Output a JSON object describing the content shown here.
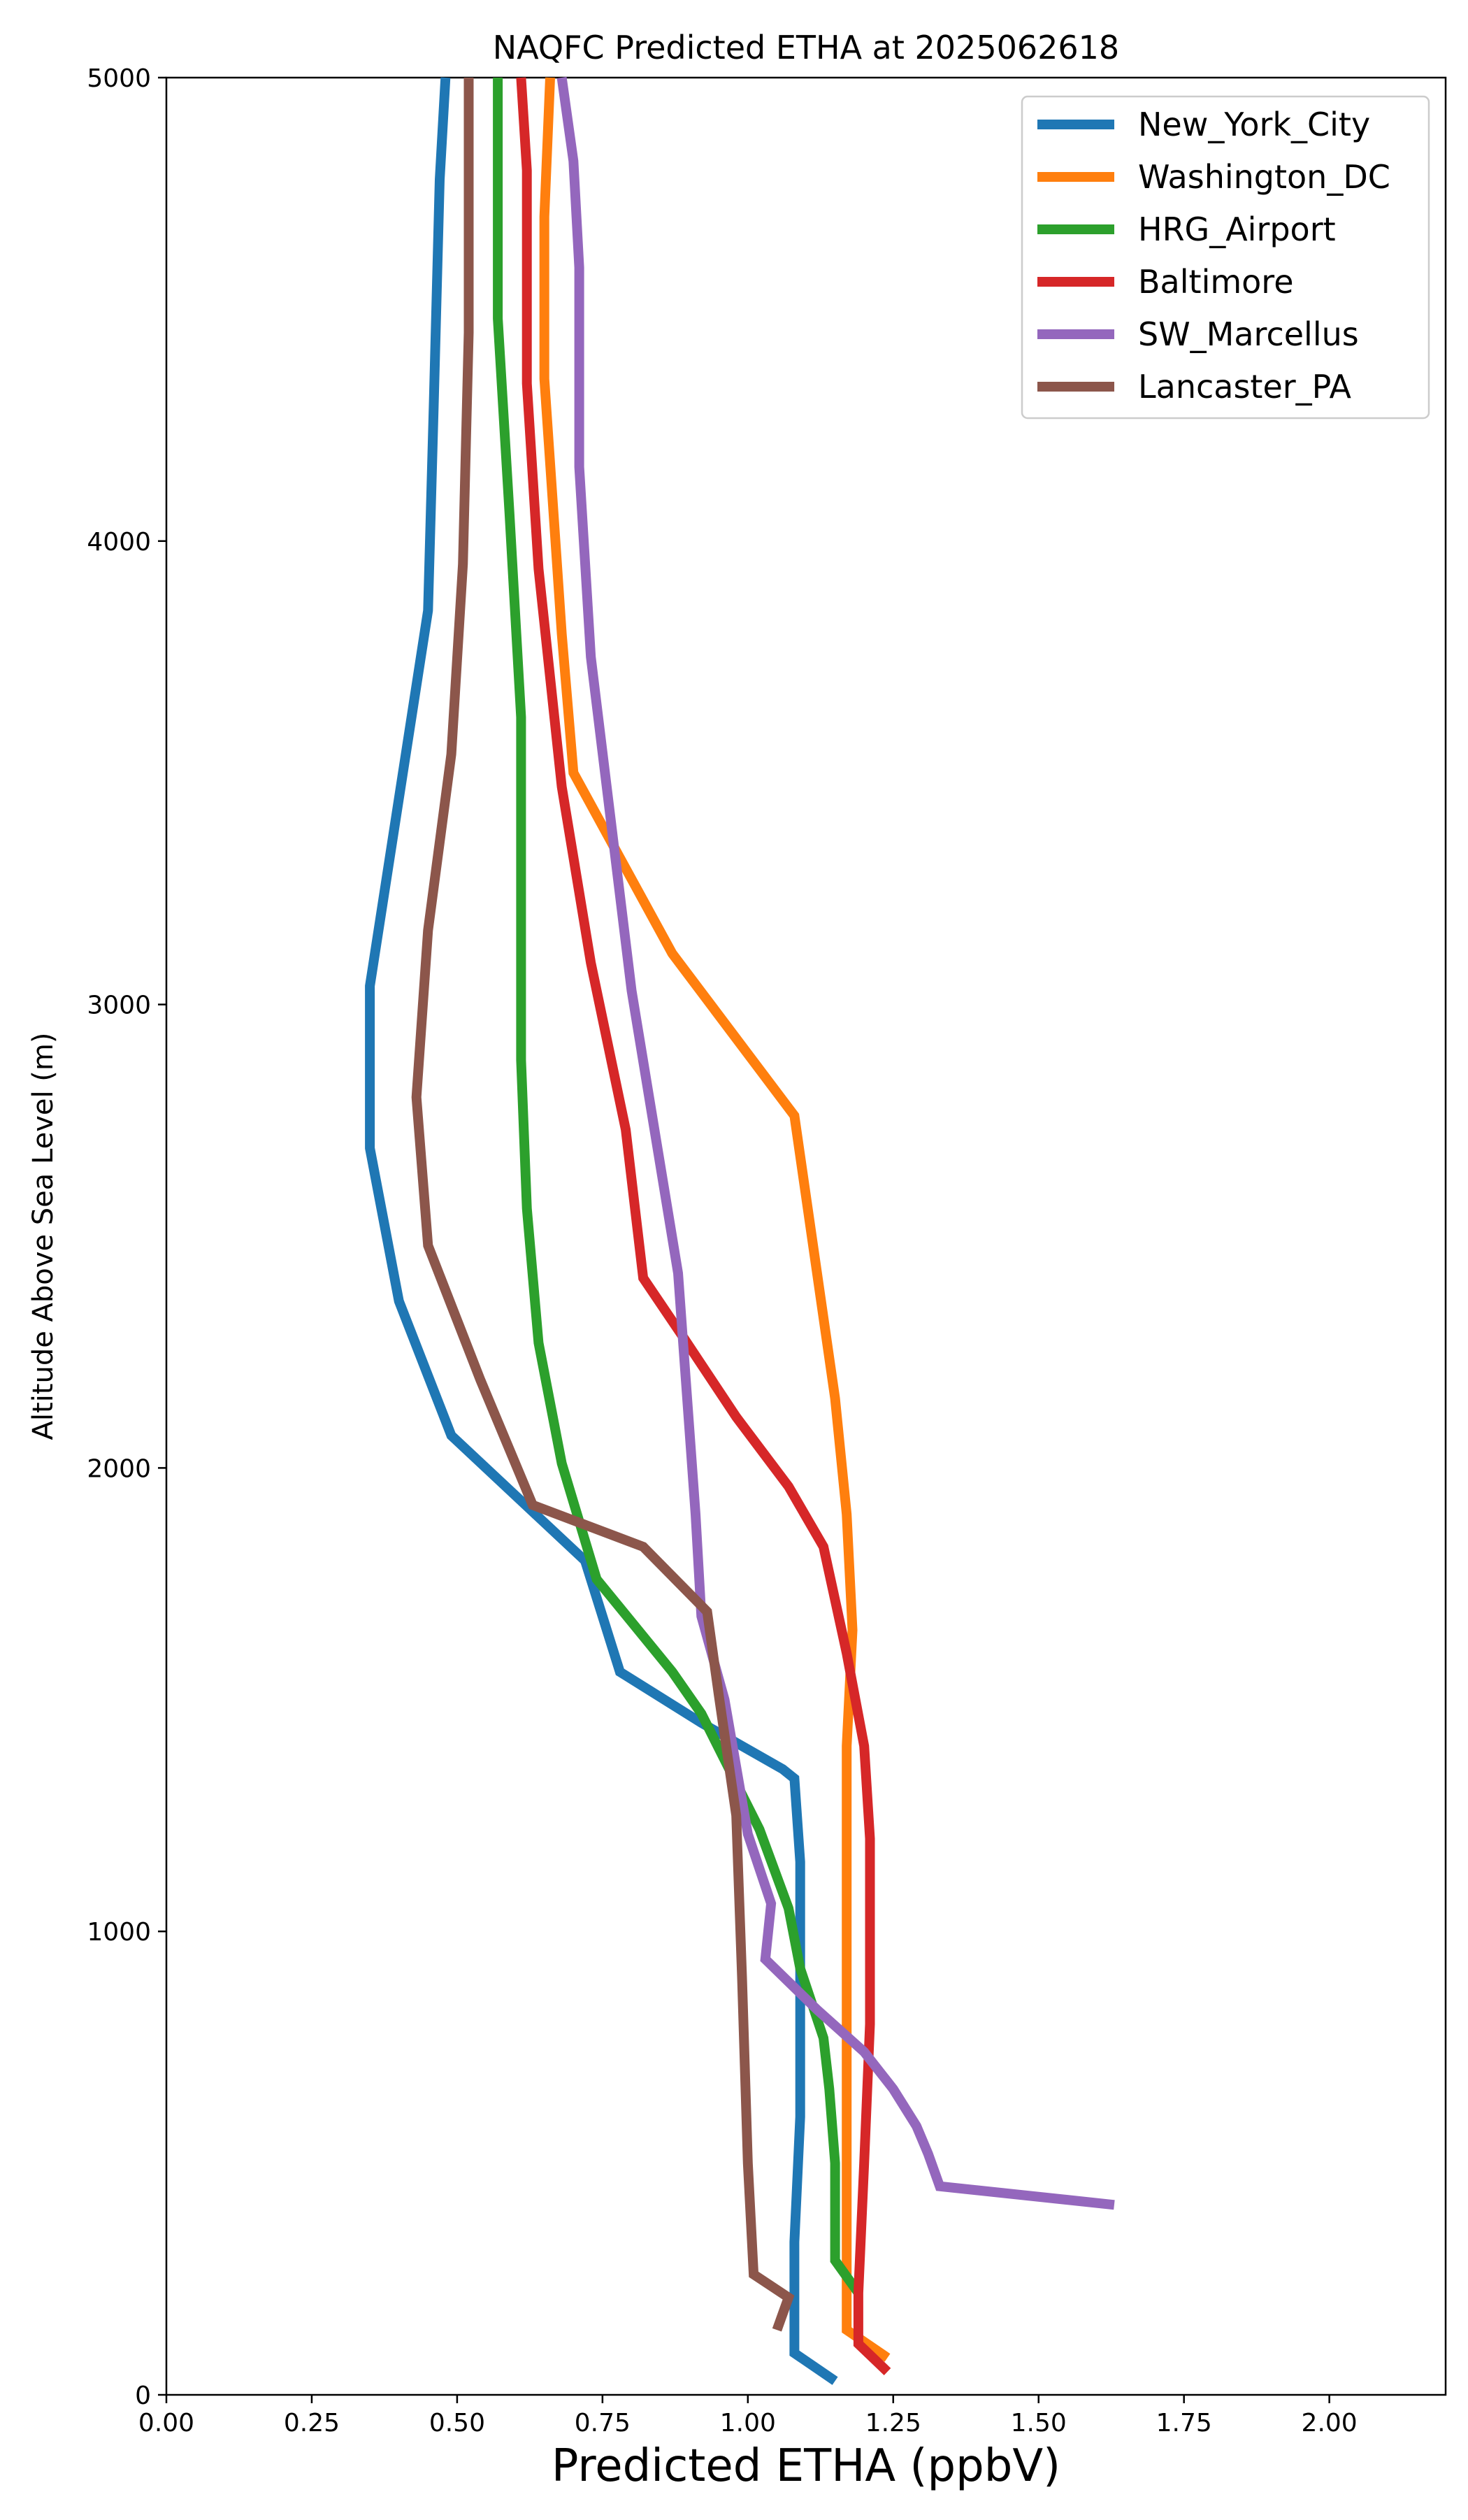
{
  "chart_data": {
    "type": "line",
    "title": "NAQFC Predicted ETHA at 2025062618",
    "xlabel": "Predicted ETHA (ppbV)",
    "ylabel": "Altitude Above Sea Level (m)",
    "xlim": [
      0,
      2.2
    ],
    "ylim": [
      0,
      5000
    ],
    "xticks": [
      0.0,
      0.25,
      0.5,
      0.75,
      1.0,
      1.25,
      1.5,
      1.75,
      2.0
    ],
    "xtick_labels": [
      "0.00",
      "0.25",
      "0.50",
      "0.75",
      "1.00",
      "1.25",
      "1.50",
      "1.75",
      "2.00"
    ],
    "yticks": [
      0,
      1000,
      2000,
      3000,
      4000,
      5000
    ],
    "ytick_labels": [
      "0",
      "1000",
      "2000",
      "3000",
      "4000",
      "5000"
    ],
    "grid": false,
    "legend_position": "upper right",
    "series": [
      {
        "name": "New_York_City",
        "color": "#1f77b4",
        "x": [
          1.15,
          1.08,
          1.08,
          1.09,
          1.09,
          1.09,
          1.08,
          1.06,
          0.92,
          0.78,
          0.72,
          0.49,
          0.4,
          0.35,
          0.35,
          0.45,
          0.46,
          0.47,
          0.48
        ],
        "y": [
          30,
          90,
          330,
          600,
          900,
          1150,
          1330,
          1350,
          1450,
          1560,
          1800,
          2070,
          2360,
          2690,
          3040,
          3850,
          4300,
          4780,
          5000
        ]
      },
      {
        "name": "Washington_DC",
        "color": "#ff7f0e",
        "x": [
          1.24,
          1.17,
          1.17,
          1.17,
          1.17,
          1.17,
          1.18,
          1.17,
          1.15,
          1.08,
          0.87,
          0.7,
          0.68,
          0.65,
          0.65,
          0.66
        ],
        "y": [
          80,
          140,
          500,
          900,
          1150,
          1400,
          1650,
          1900,
          2150,
          2760,
          3110,
          3500,
          3800,
          4350,
          4700,
          5000
        ]
      },
      {
        "name": "HRG_Airport",
        "color": "#2ca02c",
        "x": [
          1.19,
          1.15,
          1.15,
          1.14,
          1.13,
          1.09,
          1.07,
          1.02,
          0.92,
          0.87,
          0.74,
          0.68,
          0.64,
          0.62,
          0.61,
          0.61,
          0.61,
          0.61,
          0.59,
          0.57,
          0.57
        ],
        "y": [
          220,
          290,
          500,
          660,
          770,
          920,
          1050,
          1220,
          1470,
          1560,
          1760,
          2010,
          2270,
          2560,
          2880,
          3230,
          3610,
          3620,
          4060,
          4480,
          5000
        ]
      },
      {
        "name": "Baltimore",
        "color": "#d62728",
        "x": [
          1.24,
          1.19,
          1.19,
          1.2,
          1.21,
          1.21,
          1.21,
          1.2,
          1.17,
          1.13,
          1.07,
          0.98,
          0.89,
          0.82,
          0.79,
          0.73,
          0.68,
          0.64,
          0.62,
          0.62,
          0.61
        ],
        "y": [
          50,
          110,
          220,
          500,
          800,
          1040,
          1200,
          1400,
          1600,
          1830,
          1960,
          2110,
          2280,
          2410,
          2730,
          3090,
          3470,
          3940,
          4340,
          4800,
          5000
        ]
      },
      {
        "name": "SW_Marcellus",
        "color": "#9467bd",
        "x": [
          1.63,
          1.33,
          1.31,
          1.29,
          1.25,
          1.2,
          1.12,
          1.03,
          1.04,
          1.0,
          0.96,
          0.92,
          0.91,
          0.88,
          0.8,
          0.73,
          0.71,
          0.71,
          0.7,
          0.68
        ],
        "y": [
          410,
          450,
          520,
          580,
          660,
          740,
          830,
          940,
          1060,
          1210,
          1500,
          1680,
          1900,
          2420,
          3030,
          3750,
          4160,
          4590,
          4820,
          5000
        ]
      },
      {
        "name": "Lancaster_PA",
        "color": "#8c564b",
        "x": [
          1.05,
          1.07,
          1.01,
          1.0,
          0.99,
          0.98,
          0.95,
          0.93,
          0.82,
          0.63,
          0.54,
          0.45,
          0.43,
          0.45,
          0.49,
          0.51,
          0.52,
          0.52
        ],
        "y": [
          140,
          210,
          260,
          500,
          900,
          1250,
          1510,
          1690,
          1830,
          1920,
          2190,
          2480,
          2800,
          3160,
          3540,
          3950,
          4450,
          5000
        ]
      }
    ]
  }
}
